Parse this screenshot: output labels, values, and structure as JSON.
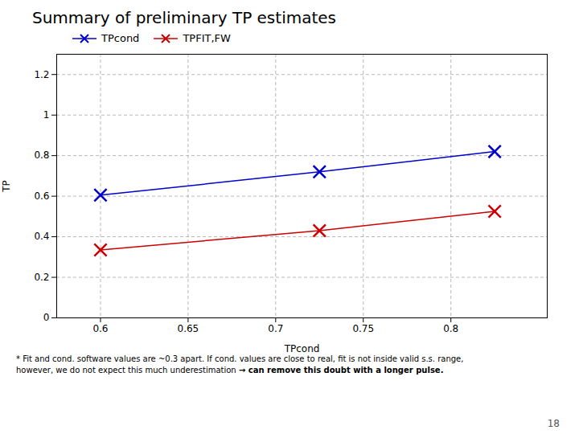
{
  "chart_data": {
    "type": "line",
    "title": "Summary of preliminary TP estimates",
    "x_label": "TPcond",
    "y_label": "TP",
    "series": [
      {
        "name": "TPcond",
        "color": "#0000cc",
        "marker": "x",
        "x": [
          0.6,
          0.725,
          0.825
        ],
        "values": [
          0.605,
          0.72,
          0.82
        ]
      },
      {
        "name": "TPFIT,FW",
        "color": "#cc0000",
        "marker": "x",
        "x": [
          0.6,
          0.725,
          0.825
        ],
        "values": [
          0.335,
          0.43,
          0.525
        ]
      }
    ],
    "xlim": [
      0.575,
      0.855
    ],
    "ylim": [
      0.0,
      1.3
    ],
    "xticks": [
      0.6,
      0.65,
      0.7,
      0.75,
      0.8
    ],
    "yticks": [
      0,
      0.2,
      0.4,
      0.6,
      0.8,
      1.0,
      1.2
    ],
    "grid": true,
    "legend": "upper left",
    "annotations": [
      [
        "* Fit and cond. software values are ~0.3 apart. If cond. values are close to real, fit is not inside valid s.s. range,"
      ],
      [
        "however, we do not expect this much underestimation ",
        "→ can remove this doubt with a longer pulse."
      ]
    ],
    "page_number": "18"
  }
}
